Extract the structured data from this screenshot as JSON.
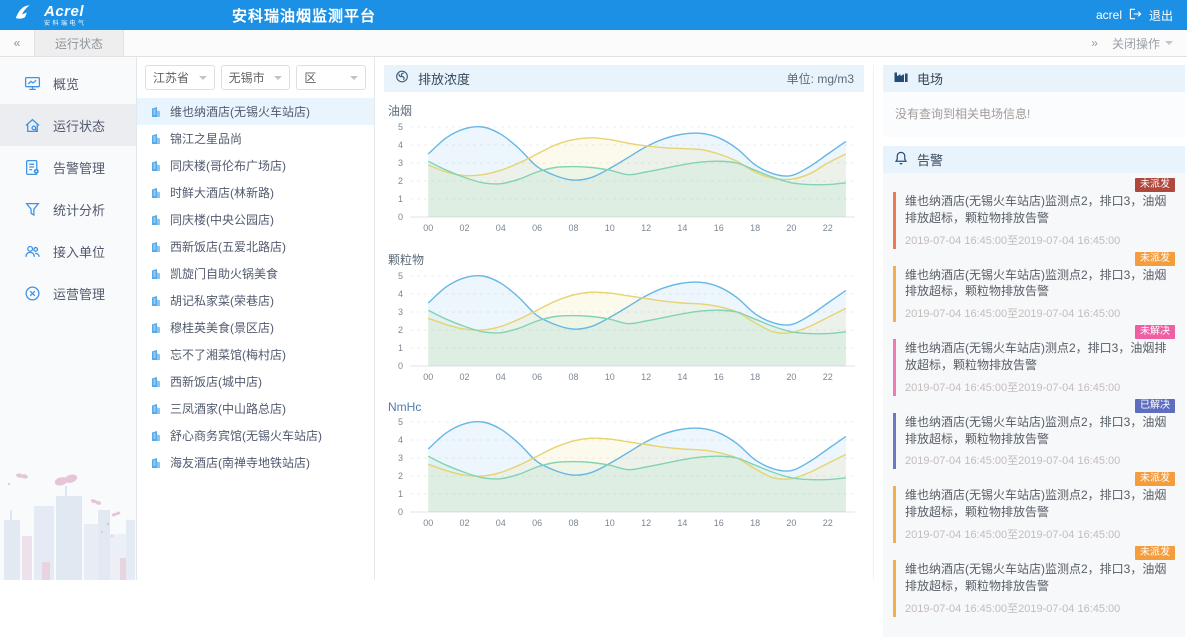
{
  "colors": {
    "header_bg": "#1b90e4",
    "accent_blue": "#3f92e4",
    "panel_header_bg": "#e9f3fc",
    "series_blue": "#67b7e5",
    "series_yellow": "#e7d36f",
    "series_green": "#83d2b4"
  },
  "header": {
    "logo_text": "Acrel",
    "logo_sub": "安科瑞电气",
    "title": "安科瑞油烟监测平台",
    "username": "acrel",
    "logout_label": "退出"
  },
  "icons": {
    "collapse_left": "«",
    "collapse_right": "»"
  },
  "tabbar": {
    "active_tab": "运行状态",
    "right_action": "关闭操作"
  },
  "sidebar": {
    "items": [
      {
        "id": "overview",
        "label": "概览",
        "active": false
      },
      {
        "id": "running-status",
        "label": "运行状态",
        "active": true
      },
      {
        "id": "alarm-management",
        "label": "告警管理",
        "active": false
      },
      {
        "id": "statistics",
        "label": "统计分析",
        "active": false
      },
      {
        "id": "access-units",
        "label": "接入单位",
        "active": false
      },
      {
        "id": "operations",
        "label": "运营管理",
        "active": false
      }
    ]
  },
  "filters": {
    "selects": [
      {
        "name": "province",
        "value": "江苏省"
      },
      {
        "name": "city",
        "value": "无锡市"
      },
      {
        "name": "district",
        "value": "区"
      }
    ]
  },
  "stores": {
    "selected_index": 0,
    "items": [
      "维也纳酒店(无锡火车站店)",
      "锦江之星品尚",
      "同庆楼(哥伦布广场店)",
      "时鲜大酒店(林新路)",
      "同庆楼(中央公园店)",
      "西新饭店(五爱北路店)",
      "凯旋门自助火锅美食",
      "胡记私家菜(荣巷店)",
      "穆桂英美食(景区店)",
      "忘不了湘菜馆(梅村店)",
      "西新饭店(城中店)",
      "三凤酒家(中山路总店)",
      "舒心商务宾馆(无锡火车站店)",
      "海友酒店(南禅寺地铁站店)"
    ]
  },
  "emission_panel": {
    "title": "排放浓度",
    "unit_label": "单位: mg/m3"
  },
  "chart_data": [
    {
      "type": "area",
      "title": "油烟",
      "title_color": "#5d6b78",
      "ylim": [
        0,
        5
      ],
      "y_ticks": [
        0,
        1,
        2,
        3,
        4,
        5
      ],
      "grid": "dashed-horizontal",
      "legend": "none",
      "categories": [
        "00",
        "01",
        "02",
        "03",
        "04",
        "05",
        "06",
        "07",
        "08",
        "09",
        "10",
        "11",
        "12",
        "13",
        "14",
        "15",
        "16",
        "17",
        "18",
        "19",
        "20",
        "21",
        "22",
        "23"
      ],
      "series": [
        {
          "name": "blue",
          "color": "#67b7e5",
          "values": [
            3.5,
            4.4,
            4.9,
            5.0,
            4.6,
            3.8,
            2.8,
            2.3,
            2.05,
            2.2,
            2.7,
            3.3,
            3.9,
            4.35,
            4.6,
            4.65,
            4.4,
            3.8,
            2.9,
            2.4,
            2.3,
            2.8,
            3.5,
            4.2
          ]
        },
        {
          "name": "yellow",
          "color": "#e7d36f",
          "values": [
            2.9,
            2.5,
            2.3,
            2.35,
            2.6,
            3.0,
            3.5,
            4.0,
            4.3,
            4.4,
            4.3,
            4.1,
            3.95,
            3.85,
            3.8,
            3.75,
            3.5,
            3.1,
            2.5,
            2.15,
            2.1,
            2.4,
            3.0,
            3.5
          ]
        },
        {
          "name": "green",
          "color": "#83d2b4",
          "values": [
            3.1,
            2.6,
            2.2,
            1.9,
            1.85,
            2.1,
            2.5,
            2.75,
            2.8,
            2.75,
            2.6,
            2.35,
            2.5,
            2.7,
            2.9,
            3.05,
            3.1,
            3.0,
            2.6,
            2.2,
            1.9,
            1.8,
            1.8,
            1.9
          ]
        }
      ]
    },
    {
      "type": "area",
      "title": "颗粒物",
      "title_color": "#5d6b78",
      "ylim": [
        0,
        5
      ],
      "y_ticks": [
        0,
        1,
        2,
        3,
        4,
        5
      ],
      "grid": "dashed-horizontal",
      "legend": "none",
      "categories": [
        "00",
        "01",
        "02",
        "03",
        "04",
        "05",
        "06",
        "07",
        "08",
        "09",
        "10",
        "11",
        "12",
        "13",
        "14",
        "15",
        "16",
        "17",
        "18",
        "19",
        "20",
        "21",
        "22",
        "23"
      ],
      "series": [
        {
          "name": "blue",
          "color": "#67b7e5",
          "values": [
            3.5,
            4.4,
            4.9,
            5.0,
            4.6,
            3.8,
            2.8,
            2.3,
            2.05,
            2.2,
            2.7,
            3.3,
            3.9,
            4.35,
            4.6,
            4.65,
            4.4,
            3.8,
            2.9,
            2.4,
            2.3,
            2.8,
            3.5,
            4.2
          ]
        },
        {
          "name": "yellow",
          "color": "#e7d36f",
          "values": [
            2.65,
            2.3,
            2.05,
            2.0,
            2.2,
            2.6,
            3.1,
            3.6,
            3.95,
            4.1,
            4.05,
            3.9,
            3.75,
            3.6,
            3.5,
            3.45,
            3.3,
            3.0,
            2.4,
            1.9,
            1.85,
            2.2,
            2.7,
            3.2
          ]
        },
        {
          "name": "green",
          "color": "#83d2b4",
          "values": [
            3.1,
            2.6,
            2.2,
            1.9,
            1.85,
            2.1,
            2.5,
            2.75,
            2.8,
            2.75,
            2.6,
            2.35,
            2.5,
            2.7,
            2.9,
            3.05,
            3.1,
            3.0,
            2.6,
            2.2,
            1.9,
            1.8,
            1.8,
            1.9
          ]
        }
      ]
    },
    {
      "type": "area",
      "title": "NmHc",
      "title_color": "#4e7fae",
      "ylim": [
        0,
        5
      ],
      "y_ticks": [
        0,
        1,
        2,
        3,
        4,
        5
      ],
      "grid": "dashed-horizontal",
      "legend": "none",
      "categories": [
        "00",
        "01",
        "02",
        "03",
        "04",
        "05",
        "06",
        "07",
        "08",
        "09",
        "10",
        "11",
        "12",
        "13",
        "14",
        "15",
        "16",
        "17",
        "18",
        "19",
        "20",
        "21",
        "22",
        "23"
      ],
      "series": [
        {
          "name": "blue",
          "color": "#67b7e5",
          "values": [
            3.5,
            4.4,
            4.9,
            5.0,
            4.6,
            3.8,
            2.8,
            2.3,
            2.05,
            2.2,
            2.7,
            3.3,
            3.9,
            4.35,
            4.6,
            4.65,
            4.4,
            3.8,
            2.9,
            2.4,
            2.3,
            2.8,
            3.5,
            4.2
          ]
        },
        {
          "name": "yellow",
          "color": "#e7d36f",
          "values": [
            2.65,
            2.3,
            2.05,
            2.0,
            2.2,
            2.6,
            3.1,
            3.6,
            3.95,
            4.1,
            4.05,
            3.9,
            3.75,
            3.6,
            3.5,
            3.45,
            3.3,
            3.0,
            2.4,
            1.9,
            1.85,
            2.2,
            2.7,
            3.2
          ]
        },
        {
          "name": "green",
          "color": "#83d2b4",
          "values": [
            3.1,
            2.6,
            2.2,
            1.9,
            1.85,
            2.1,
            2.5,
            2.75,
            2.8,
            2.75,
            2.6,
            2.35,
            2.5,
            2.7,
            2.9,
            3.05,
            3.1,
            3.0,
            2.6,
            2.2,
            1.9,
            1.8,
            1.8,
            1.9
          ]
        }
      ]
    }
  ],
  "field_panel": {
    "title": "电场",
    "empty_message": "没有查询到相关电场信息!"
  },
  "alarm_panel": {
    "title": "告警",
    "alerts": [
      {
        "status": "未派发",
        "status_bg": "#b0473d",
        "border_color": "#ee7a55",
        "message": "维也纳酒店(无锡火车站店)监测点2，排口3，油烟排放超标，颗粒物排放告警",
        "time_range": "2019-07-04 16:45:00至2019-07-04 16:45:00"
      },
      {
        "status": "未派发",
        "status_bg": "#f49d3d",
        "border_color": "#f6ae4d",
        "message": "维也纳酒店(无锡火车站店)监测点2，排口3，油烟排放超标，颗粒物排放告警",
        "time_range": "2019-07-04 16:45:00至2019-07-04 16:45:00"
      },
      {
        "status": "未解决",
        "status_bg": "#ee5fa4",
        "border_color": "#f07ab5",
        "message": "维也纳酒店(无锡火车站店)测点2，排口3，油烟排放超标，颗粒物排放告警",
        "time_range": "2019-07-04 16:45:00至2019-07-04 16:45:00"
      },
      {
        "status": "已解决",
        "status_bg": "#5e6dbf",
        "border_color": "#6b79c7",
        "message": "维也纳酒店(无锡火车站店)监测点2，排口3，油烟排放超标，颗粒物排放告警",
        "time_range": "2019-07-04 16:45:00至2019-07-04 16:45:00"
      },
      {
        "status": "未派发",
        "status_bg": "#f49d3d",
        "border_color": "#f6ae4d",
        "message": "维也纳酒店(无锡火车站店)监测点2，排口3，油烟排放超标，颗粒物排放告警",
        "time_range": "2019-07-04 16:45:00至2019-07-04 16:45:00"
      },
      {
        "status": "未派发",
        "status_bg": "#f49d3d",
        "border_color": "#f6ae4d",
        "message": "维也纳酒店(无锡火车站店)监测点2，排口3，油烟排放超标，颗粒物排放告警",
        "time_range": "2019-07-04 16:45:00至2019-07-04 16:45:00"
      }
    ]
  }
}
